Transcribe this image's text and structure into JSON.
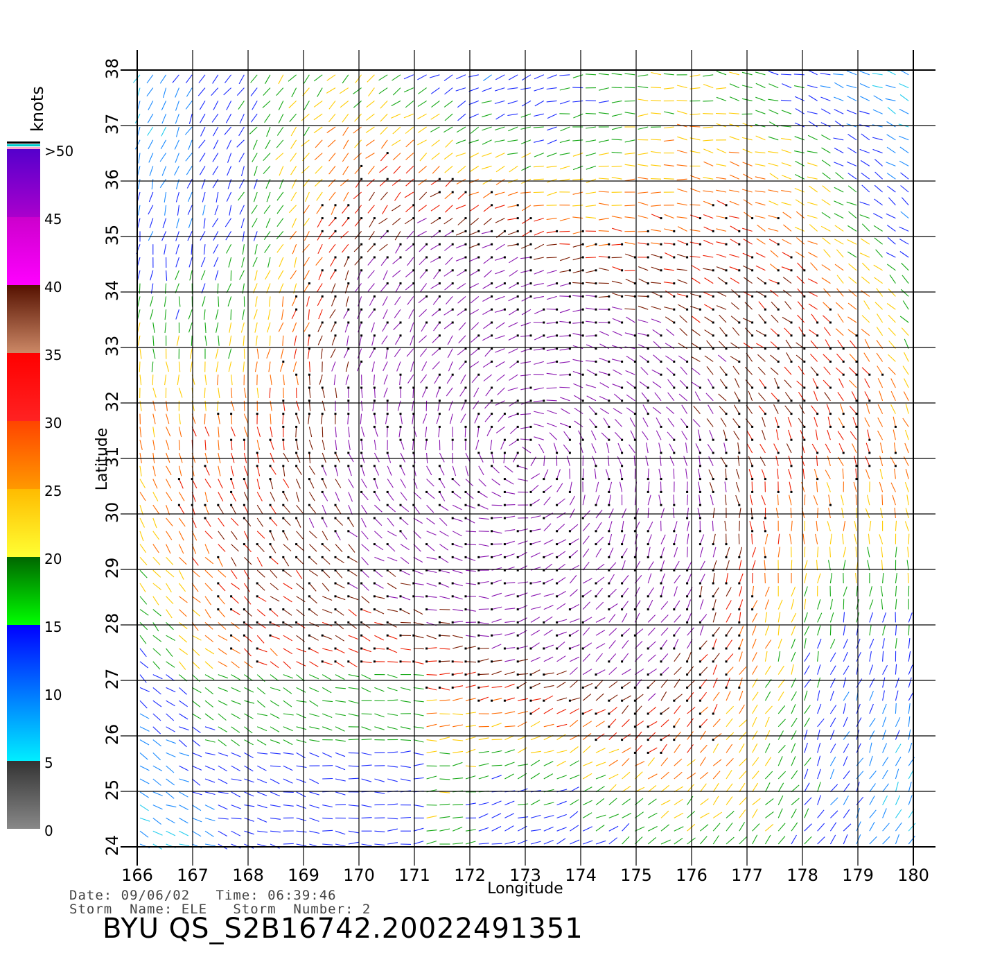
{
  "chart_data": {
    "type": "wind-vector-map",
    "xlabel": "Longitude",
    "ylabel": "Latitude",
    "xlim": [
      166,
      180
    ],
    "ylim": [
      24,
      38
    ],
    "x_ticks": [
      "166",
      "167",
      "168",
      "169",
      "170",
      "171",
      "172",
      "173",
      "174",
      "175",
      "176",
      "177",
      "178",
      "179",
      "180"
    ],
    "y_ticks": [
      "24",
      "25",
      "26",
      "27",
      "28",
      "29",
      "30",
      "31",
      "32",
      "33",
      "34",
      "35",
      "36",
      "37",
      "38"
    ],
    "grid": true,
    "colorbar": {
      "label": "knots",
      "ticks": [
        "0",
        "5",
        "10",
        "15",
        "20",
        "25",
        "30",
        "35",
        "40",
        "45",
        ">50"
      ],
      "bands": [
        {
          "from": 0,
          "to": 5,
          "top": "#333333",
          "bottom": "#888888"
        },
        {
          "from": 5,
          "to": 10,
          "top": "#0077ff",
          "bottom": "#00eeff"
        },
        {
          "from": 10,
          "to": 15,
          "top": "#0000ff",
          "bottom": "#0077ff"
        },
        {
          "from": 15,
          "to": 20,
          "top": "#006600",
          "bottom": "#00ff00"
        },
        {
          "from": 20,
          "to": 25,
          "top": "#ffbb00",
          "bottom": "#ffff33"
        },
        {
          "from": 25,
          "to": 30,
          "top": "#ff4400",
          "bottom": "#ff9900"
        },
        {
          "from": 30,
          "to": 35,
          "top": "#ff0000",
          "bottom": "#ff2222"
        },
        {
          "from": 35,
          "to": 40,
          "top": "#551100",
          "bottom": "#cc8866"
        },
        {
          "from": 40,
          "to": 45,
          "top": "#cc00cc",
          "bottom": "#ff00ff"
        },
        {
          "from": 45,
          "to": 50,
          "top": "#5500cc",
          "bottom": "#aa00cc"
        }
      ],
      "overflow_colors": [
        "#ffaacc",
        "#00cccc",
        "#000000"
      ]
    },
    "storm_center": {
      "lon": 173.0,
      "lat": 31.0
    },
    "speed_colors": [
      "#ff0000",
      "#ffbb00",
      "#00aa00",
      "#0000ee",
      "#880088"
    ]
  },
  "meta": {
    "date_line": "Date: 09/06/02   Time: 06:39:46",
    "storm_line": "Storm  Name: ELE   Storm  Number: 2",
    "title": "BYU  QS_S2B16742.20022491351"
  }
}
